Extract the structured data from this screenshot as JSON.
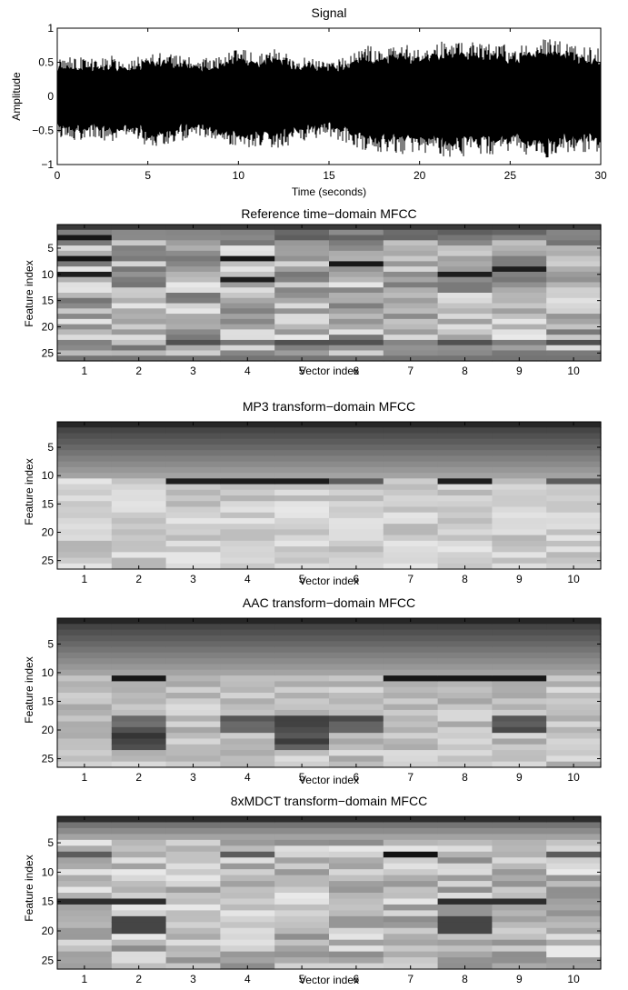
{
  "chart_data": [
    {
      "type": "line",
      "title": "Signal",
      "xlabel": "Time (seconds)",
      "ylabel": "Amplitude",
      "xlim": [
        0,
        30
      ],
      "ylim": [
        -1,
        1
      ],
      "xticks": [
        0,
        5,
        10,
        15,
        20,
        25,
        30
      ],
      "yticks": [
        -1,
        -0.5,
        0,
        0.5,
        1
      ],
      "ytick_labels": [
        "−1",
        "−0.5",
        "0",
        "0.5",
        "1"
      ],
      "envelope": {
        "t": [
          0,
          1,
          2,
          3,
          4,
          5,
          6,
          7,
          8,
          9,
          10,
          11,
          12,
          13,
          14,
          15,
          16,
          17,
          18,
          19,
          20,
          21,
          22,
          23,
          24,
          25,
          26,
          27,
          28,
          29,
          30
        ],
        "upper": [
          0.55,
          0.6,
          0.55,
          0.6,
          0.5,
          0.7,
          0.65,
          0.6,
          0.55,
          0.6,
          0.7,
          0.65,
          0.7,
          0.6,
          0.6,
          0.55,
          0.6,
          0.75,
          0.7,
          0.8,
          0.7,
          0.8,
          0.85,
          0.8,
          0.8,
          0.75,
          0.8,
          0.85,
          0.8,
          0.75,
          0.7
        ],
        "lower": [
          -0.6,
          -0.65,
          -0.6,
          -0.7,
          -0.55,
          -0.75,
          -0.7,
          -0.65,
          -0.6,
          -0.7,
          -0.75,
          -0.75,
          -0.8,
          -0.7,
          -0.65,
          -0.6,
          -0.7,
          -0.8,
          -0.85,
          -0.85,
          -0.8,
          -0.9,
          -0.9,
          -0.85,
          -0.85,
          -0.8,
          -0.9,
          -0.9,
          -0.85,
          -0.85,
          -0.8
        ]
      }
    },
    {
      "type": "heatmap",
      "title": "Reference time−domain MFCC",
      "xlabel": "Vector index",
      "ylabel": "Feature index",
      "x": [
        1,
        2,
        3,
        4,
        5,
        6,
        7,
        8,
        9,
        10
      ],
      "yticks": [
        5,
        10,
        15,
        20,
        25
      ],
      "n_features": 26,
      "colormap": "gray",
      "style": "reference"
    },
    {
      "type": "heatmap",
      "title": "MP3 transform−domain MFCC",
      "xlabel": "Vector index",
      "ylabel": "Feature index",
      "x": [
        1,
        2,
        3,
        4,
        5,
        6,
        7,
        8,
        9,
        10
      ],
      "yticks": [
        5,
        10,
        15,
        20,
        25
      ],
      "n_features": 26,
      "colormap": "gray",
      "style": "mp3"
    },
    {
      "type": "heatmap",
      "title": "AAC transform−domain MFCC",
      "xlabel": "Vector index",
      "ylabel": "Feature index",
      "x": [
        1,
        2,
        3,
        4,
        5,
        6,
        7,
        8,
        9,
        10
      ],
      "yticks": [
        5,
        10,
        15,
        20,
        25
      ],
      "n_features": 26,
      "colormap": "gray",
      "style": "aac"
    },
    {
      "type": "heatmap",
      "title": "8xMDCT transform−domain MFCC",
      "xlabel": "Vector index",
      "ylabel": "Feature index",
      "x": [
        1,
        2,
        3,
        4,
        5,
        6,
        7,
        8,
        9,
        10
      ],
      "yticks": [
        5,
        10,
        15,
        20,
        25
      ],
      "n_features": 26,
      "colormap": "gray",
      "style": "mdct"
    }
  ]
}
